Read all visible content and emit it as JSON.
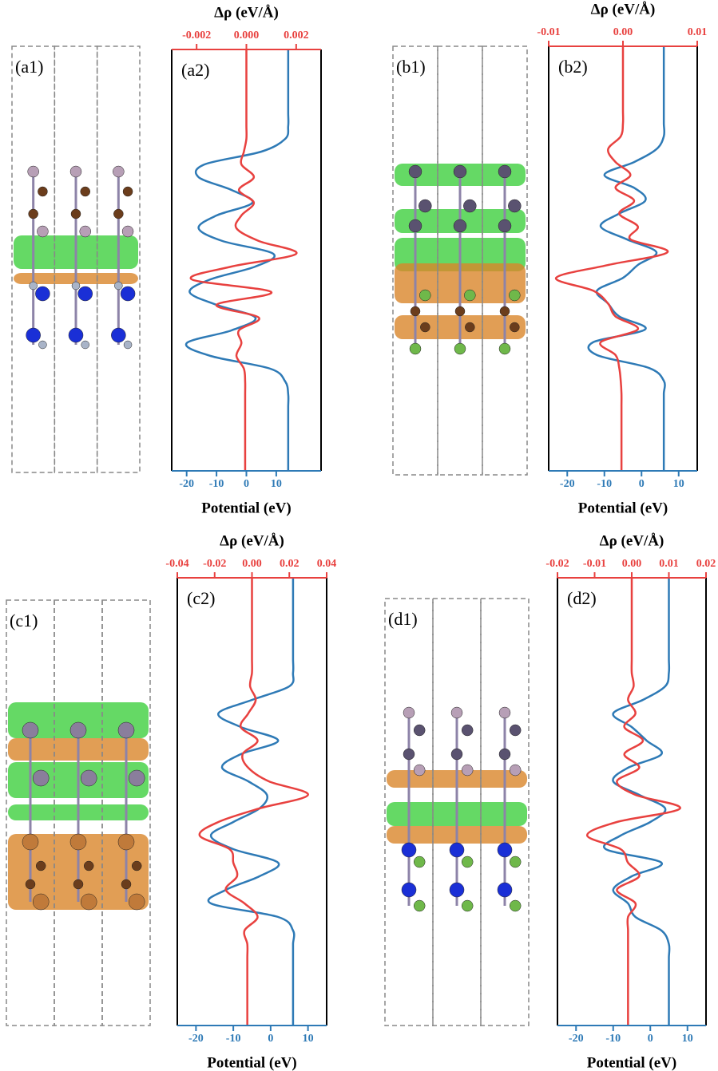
{
  "structures": [
    {
      "label": "(a1)"
    },
    {
      "label": "(b1)"
    },
    {
      "label": "(c1)"
    },
    {
      "label": "(d1)"
    }
  ],
  "chart_data": [
    {
      "type": "line",
      "label": "(a2)",
      "x_label": "Potential (eV)",
      "x2_label": "Δρ (eV/Å)",
      "categories": [
        null,
        null,
        null,
        null,
        null,
        null,
        null,
        null,
        null,
        null,
        null,
        null,
        null,
        null,
        null,
        null,
        null,
        null,
        null,
        null,
        null,
        null,
        null,
        null,
        null,
        null,
        null,
        null,
        null,
        null,
        null,
        null,
        null,
        null
      ],
      "xlim": [
        -25,
        25
      ],
      "xticks": [
        -20,
        -10,
        0,
        10
      ],
      "xcolor": "#2e7ab6",
      "x2lim": [
        -0.003,
        0.003
      ],
      "x2ticks": [
        -0.002,
        {
          "value": 0,
          "label": "0.000"
        },
        0.002
      ],
      "x2color": "#e8413f",
      "series": [
        {
          "color": "#2e7ab6",
          "axis": "x",
          "values": [
            14,
            14,
            14,
            14,
            14,
            14,
            14,
            13,
            5,
            -14,
            -16,
            -5,
            2,
            -10,
            -16,
            -8,
            9,
            3,
            -12,
            -19,
            -10,
            3,
            -5,
            -20,
            -12,
            8,
            13,
            14,
            14,
            14,
            14,
            14,
            14,
            14
          ]
        },
        {
          "color": "#e8413f",
          "axis": "x2",
          "values": [
            0,
            0,
            0,
            0,
            0,
            0,
            0,
            0,
            -0.0001,
            -0.0002,
            0.0003,
            -0.0003,
            0.0003,
            -0.0002,
            -0.0004,
            0.0005,
            0.002,
            -0.0006,
            -0.0022,
            0.001,
            -0.0012,
            0.0005,
            -0.0003,
            -0.0002,
            -0.0004,
            -0.0001,
            -5e-05,
            -5e-05,
            -5e-05,
            -5e-05,
            -5e-05,
            -5e-05,
            -5e-05,
            -5e-05
          ]
        }
      ]
    },
    {
      "type": "line",
      "label": "(b2)",
      "x_label": "Potential (eV)",
      "x2_label": "Δρ (eV/Å)",
      "categories": [
        null,
        null,
        null,
        null,
        null,
        null,
        null,
        null,
        null,
        null,
        null,
        null,
        null,
        null,
        null,
        null,
        null,
        null,
        null,
        null,
        null,
        null,
        null,
        null,
        null,
        null,
        null,
        null,
        null,
        null,
        null,
        null,
        null,
        null
      ],
      "xlim": [
        -25,
        15
      ],
      "xticks": [
        -20,
        -10,
        0,
        10
      ],
      "xcolor": "#2e7ab6",
      "x2lim": [
        -0.01,
        0.01
      ],
      "x2ticks": [
        -0.01,
        {
          "value": 0,
          "label": "0.00"
        },
        0.01
      ],
      "x2color": "#e8413f",
      "series": [
        {
          "color": "#2e7ab6",
          "axis": "x",
          "values": [
            6,
            6,
            6,
            6,
            6,
            6,
            6,
            6,
            4,
            -2,
            -10,
            -2,
            1,
            -6,
            -11,
            -4,
            4,
            -1,
            -5,
            -12,
            -9,
            -6,
            1,
            -13,
            -12,
            2,
            6,
            6,
            6,
            6,
            6,
            6,
            6,
            6
          ]
        },
        {
          "color": "#e8413f",
          "axis": "x2",
          "values": [
            0,
            0,
            0,
            0,
            0,
            0,
            0,
            -0.0003,
            -0.002,
            -0.001,
            0.001,
            -0.001,
            0.0015,
            -0.0005,
            0.002,
            0.001,
            0.006,
            -0.002,
            -0.009,
            -0.004,
            -0.002,
            -0.001,
            0.002,
            -0.003,
            -0.001,
            -0.0005,
            -0.0003,
            -0.0002,
            -0.0002,
            -0.0002,
            -0.0002,
            -0.0002,
            -0.0002,
            -0.0002
          ]
        }
      ]
    },
    {
      "type": "line",
      "label": "(c2)",
      "x_label": "Potential (eV)",
      "x2_label": "Δρ (eV/Å)",
      "categories": [
        null,
        null,
        null,
        null,
        null,
        null,
        null,
        null,
        null,
        null,
        null,
        null,
        null,
        null,
        null,
        null,
        null,
        null,
        null,
        null,
        null,
        null,
        null,
        null,
        null,
        null,
        null,
        null,
        null,
        null,
        null,
        null,
        null,
        null
      ],
      "xlim": [
        -25,
        15
      ],
      "xticks": [
        -20,
        -10,
        0,
        10
      ],
      "xcolor": "#2e7ab6",
      "x2lim": [
        -0.04,
        0.04
      ],
      "x2ticks": [
        -0.04,
        -0.02,
        {
          "value": 0,
          "label": "0.00"
        },
        0.02,
        0.04
      ],
      "x2color": "#e8413f",
      "series": [
        {
          "color": "#2e7ab6",
          "axis": "x",
          "values": [
            6,
            6,
            6,
            6,
            6,
            6,
            6,
            6,
            5,
            -5,
            -14,
            -8,
            2,
            -8,
            -13,
            -6,
            -1,
            -3,
            -10,
            -16,
            -10,
            2,
            -3,
            -12,
            -16,
            2,
            6,
            6,
            6,
            6,
            6,
            6,
            6,
            6
          ]
        },
        {
          "color": "#e8413f",
          "axis": "x2",
          "values": [
            0,
            0,
            0,
            0,
            0,
            0,
            0,
            0,
            -0.001,
            0.002,
            -0.002,
            -0.006,
            0.003,
            -0.005,
            -0.002,
            0.009,
            0.03,
            0.004,
            -0.018,
            -0.028,
            -0.012,
            -0.01,
            -0.008,
            -0.014,
            -0.004,
            0.003,
            -0.004,
            -0.0025,
            -0.0025,
            -0.0025,
            -0.0025,
            -0.0025,
            -0.0025,
            -0.0025
          ]
        }
      ]
    },
    {
      "type": "line",
      "label": "(d2)",
      "x_label": "Potential (eV)",
      "x2_label": "Δρ (eV/Å)",
      "categories": [
        null,
        null,
        null,
        null,
        null,
        null,
        null,
        null,
        null,
        null,
        null,
        null,
        null,
        null,
        null,
        null,
        null,
        null,
        null,
        null,
        null,
        null,
        null,
        null,
        null,
        null,
        null,
        null,
        null,
        null,
        null,
        null,
        null,
        null
      ],
      "xlim": [
        -25,
        15
      ],
      "xticks": [
        -20,
        -10,
        0,
        10
      ],
      "xcolor": "#2e7ab6",
      "x2lim": [
        -0.02,
        0.02
      ],
      "x2ticks": [
        -0.02,
        -0.01,
        {
          "value": 0,
          "label": "0.00"
        },
        0.01,
        0.02
      ],
      "x2color": "#e8413f",
      "series": [
        {
          "color": "#2e7ab6",
          "axis": "x",
          "values": [
            5,
            5,
            5,
            5,
            5,
            5,
            5,
            5,
            4,
            -2,
            -10,
            -5,
            -1,
            3,
            -6,
            -10,
            -3,
            4,
            0,
            -8,
            -12,
            3,
            -5,
            -10,
            -6,
            -4,
            3,
            5,
            5,
            5,
            5,
            5,
            5,
            5
          ]
        },
        {
          "color": "#e8413f",
          "axis": "x2",
          "values": [
            0,
            0,
            0,
            0,
            0,
            0,
            0,
            0,
            0.0005,
            -0.001,
            0.001,
            -0.002,
            0.003,
            -0.002,
            0.002,
            -0.004,
            0.001,
            0.013,
            -0.004,
            -0.012,
            -0.003,
            -0.001,
            0.002,
            -0.004,
            0.001,
            -0.001,
            -0.001,
            -0.001,
            -0.001,
            -0.001,
            -0.001,
            -0.001,
            -0.001,
            -0.001
          ]
        }
      ]
    }
  ]
}
